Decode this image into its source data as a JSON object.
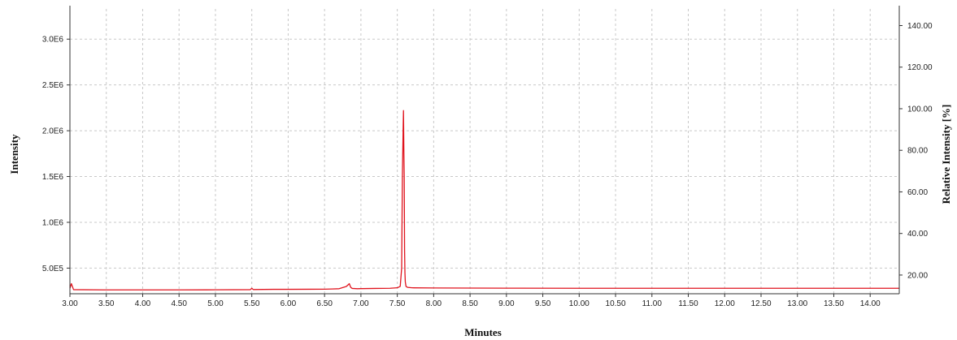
{
  "chart_data": {
    "type": "line",
    "xlabel": "Minutes",
    "ylabel": "Intensity",
    "y2label": "Relative Intensity [%]",
    "xlim": [
      3.0,
      14.4
    ],
    "ylim": [
      220000,
      3330000
    ],
    "y2lim": [
      11.0,
      148.0
    ],
    "x_ticks": [
      3.0,
      3.5,
      4.0,
      4.5,
      5.0,
      5.5,
      6.0,
      6.5,
      7.0,
      7.5,
      8.0,
      8.5,
      9.0,
      9.5,
      10.0,
      10.5,
      11.0,
      11.5,
      12.0,
      12.5,
      13.0,
      13.5,
      14.0
    ],
    "x_tick_labels": [
      "3.00",
      "3.50",
      "4.00",
      "4.50",
      "5.00",
      "5.50",
      "6.00",
      "6.50",
      "7.00",
      "7.50",
      "8.00",
      "8.50",
      "9.00",
      "9.50",
      "10.00",
      "10.50",
      "11.00",
      "11.50",
      "12.00",
      "12.50",
      "13.00",
      "13.50",
      "14.00"
    ],
    "y_ticks": [
      500000,
      1000000,
      1500000,
      2000000,
      2500000,
      3000000
    ],
    "y_tick_labels": [
      "5.0E5",
      "1.0E6",
      "1.5E6",
      "2.0E6",
      "2.5E6",
      "3.0E6"
    ],
    "y2_ticks": [
      20,
      40,
      60,
      80,
      100,
      120,
      140
    ],
    "y2_tick_labels": [
      "20.00",
      "40.00",
      "60.00",
      "80.00",
      "100.00",
      "120.00",
      "140.00"
    ],
    "grid": true,
    "series": [
      {
        "color": "#e0141e",
        "x": [
          3.0,
          3.02,
          3.05,
          3.5,
          4.0,
          4.5,
          5.0,
          5.48,
          5.5,
          5.52,
          5.8,
          6.0,
          6.5,
          6.6,
          6.7,
          6.8,
          6.84,
          6.86,
          6.88,
          6.95,
          7.0,
          7.2,
          7.4,
          7.5,
          7.54,
          7.56,
          7.57,
          7.58,
          7.585,
          7.59,
          7.595,
          7.6,
          7.605,
          7.61,
          7.62,
          7.64,
          7.7,
          8.0,
          8.5,
          9.0,
          10.0,
          11.0,
          12.0,
          13.0,
          14.0,
          14.4
        ],
        "y": [
          280000,
          330000,
          265000,
          262000,
          262000,
          262000,
          263000,
          265000,
          280000,
          266000,
          268000,
          268000,
          270000,
          272000,
          275000,
          300000,
          330000,
          290000,
          278000,
          275000,
          276000,
          278000,
          280000,
          285000,
          300000,
          500000,
          1500000,
          2000000,
          2220000,
          1800000,
          1500000,
          700000,
          450000,
          350000,
          300000,
          290000,
          285000,
          283000,
          282000,
          281000,
          280000,
          280000,
          280000,
          280000,
          280000,
          280000
        ]
      }
    ]
  }
}
